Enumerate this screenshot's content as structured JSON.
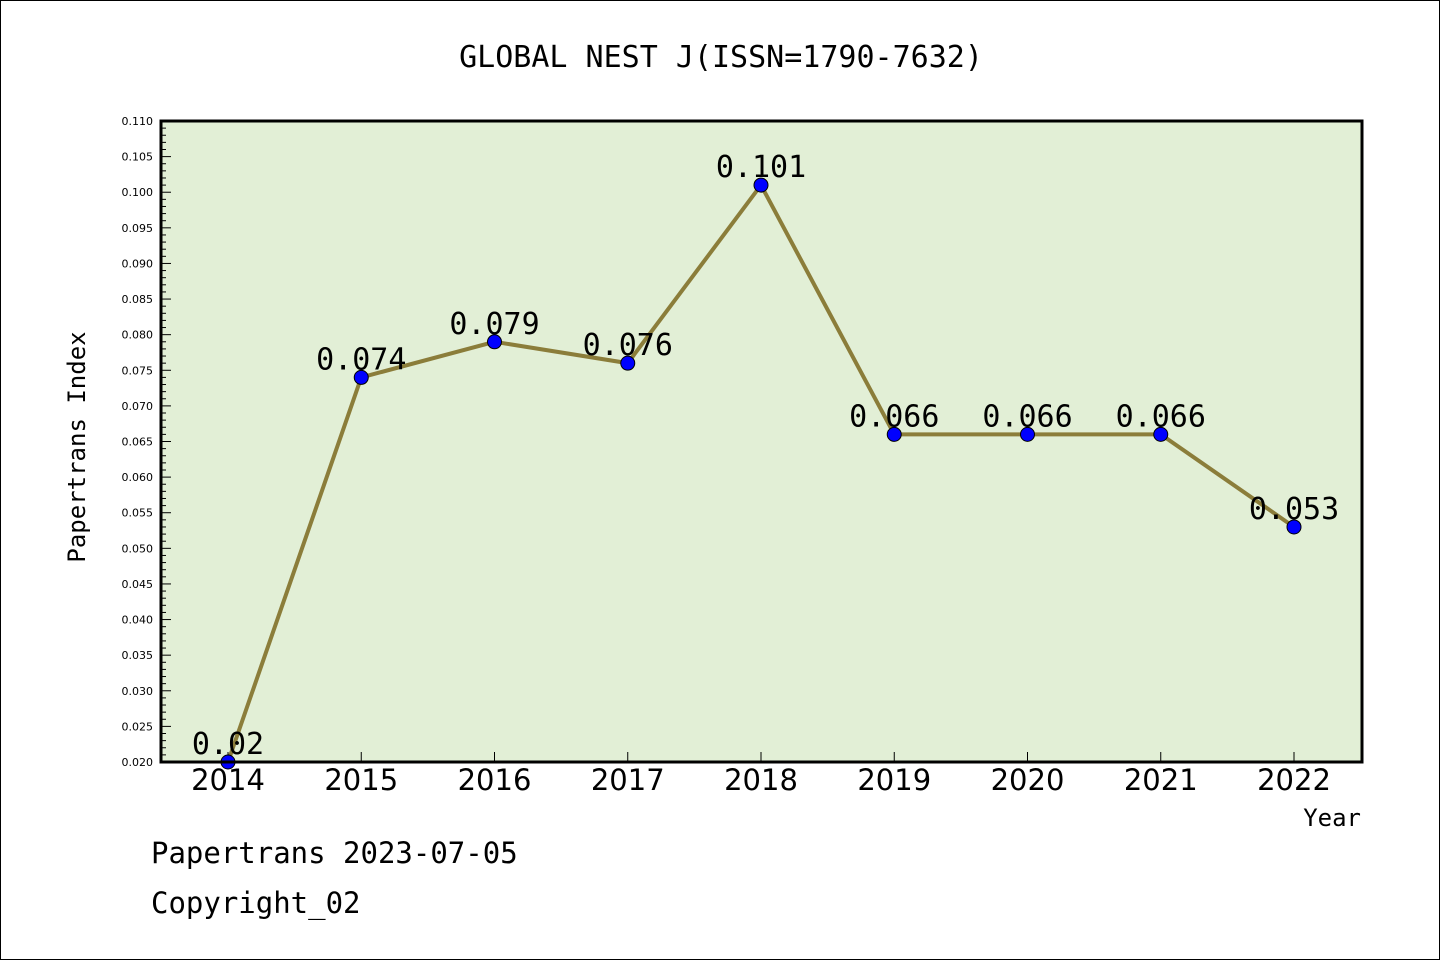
{
  "chart_data": {
    "type": "line",
    "title": "GLOBAL NEST J(ISSN=1790-7632)",
    "xlabel": "Year",
    "ylabel": "Papertrans Index",
    "categories": [
      "2014",
      "2015",
      "2016",
      "2017",
      "2018",
      "2019",
      "2020",
      "2021",
      "2022"
    ],
    "values": [
      0.02,
      0.074,
      0.079,
      0.076,
      0.101,
      0.066,
      0.066,
      0.066,
      0.053
    ],
    "data_labels": [
      "0.02",
      "0.074",
      "0.079",
      "0.076",
      "0.101",
      "0.066",
      "0.066",
      "0.066",
      "0.053"
    ],
    "ylim": [
      0.02,
      0.11
    ],
    "yticks": [
      "0.020",
      "0.025",
      "0.030",
      "0.035",
      "0.040",
      "0.045",
      "0.050",
      "0.055",
      "0.060",
      "0.065",
      "0.070",
      "0.075",
      "0.080",
      "0.085",
      "0.090",
      "0.095",
      "0.100",
      "0.105",
      "0.110"
    ],
    "grid": false,
    "colors": {
      "plot_background": "#e2efd6",
      "line": "#8b7d3a",
      "marker": "#0000ff"
    }
  },
  "footer": {
    "line1": "Papertrans 2023-07-05",
    "line2": "Copyright_02"
  }
}
